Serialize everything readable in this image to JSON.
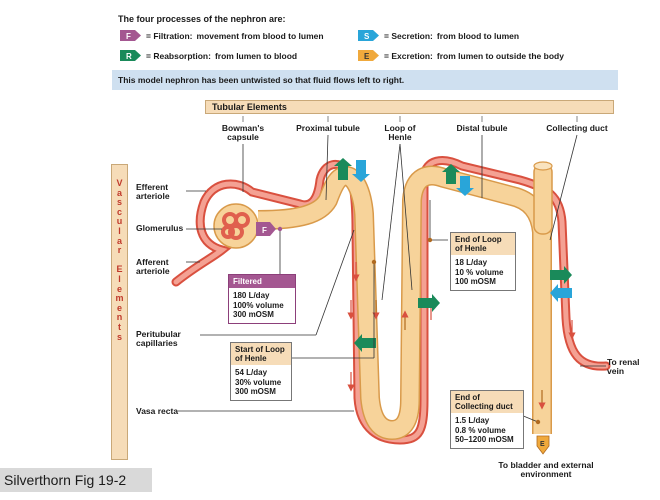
{
  "legend": {
    "title": "The four processes of the nephron are:",
    "items": [
      {
        "letter": "F",
        "label": "= Filtration:",
        "desc": "movement from blood to lumen",
        "color": "#a45791"
      },
      {
        "letter": "S",
        "label": "= Secretion:",
        "desc": "from blood to lumen",
        "color": "#29a5d9"
      },
      {
        "letter": "R",
        "label": "= Reabsorption:",
        "desc": "from lumen to blood",
        "color": "#1a8a5a"
      },
      {
        "letter": "E",
        "label": "= Excretion:",
        "desc": "from lumen to outside the body",
        "color": "#f0a93c"
      }
    ]
  },
  "banner": "This model nephron has been untwisted so that fluid flows left to right.",
  "tubular": {
    "heading": "Tubular Elements",
    "bowman": "Bowman's capsule",
    "proximal": "Proximal tubule",
    "loop": "Loop of Henle",
    "distal": "Distal tubule",
    "collecting": "Collecting duct"
  },
  "vascular": {
    "letters": [
      "V",
      "a",
      "s",
      "c",
      "u",
      "l",
      "a",
      "r",
      "",
      "E",
      "l",
      "e",
      "m",
      "e",
      "n",
      "t",
      "s"
    ],
    "efferent": "Efferent arteriole",
    "glomerulus": "Glomerulus",
    "afferent": "Afferent arteriole",
    "peritubular": "Peritubular capillaries",
    "vasa_recta": "Vasa recta"
  },
  "boxes": {
    "filtered": {
      "title": "Filtered",
      "l1": "180 L/day",
      "l2": "100% volume",
      "l3": "300 mOSM"
    },
    "start_loop": {
      "title": "Start of Loop of Henle",
      "l1": "54 L/day",
      "l2": "30% volume",
      "l3": "300 mOSM"
    },
    "end_loop": {
      "title": "End of Loop of Henle",
      "l1": "18 L/day",
      "l2": "10 % volume",
      "l3": "100 mOSM"
    },
    "end_collecting": {
      "title": "End of Collecting duct",
      "l1": "1.5 L/day",
      "l2": "0.8 % volume",
      "l3": "50–1200 mOSM"
    }
  },
  "outlets": {
    "renal_vein": "To renal vein",
    "bladder": "To bladder and external environment"
  },
  "footer": "Silverthorn Fig 19-2",
  "colors": {
    "tubule": "#f7d39a",
    "tubule_edge": "#d99a4a",
    "vessel": "#f08070",
    "vessel_edge": "#d9503f",
    "reabsorb": "#1a8a5a",
    "secrete": "#29a5d9",
    "filter": "#a45791",
    "excrete": "#f0a93c"
  }
}
